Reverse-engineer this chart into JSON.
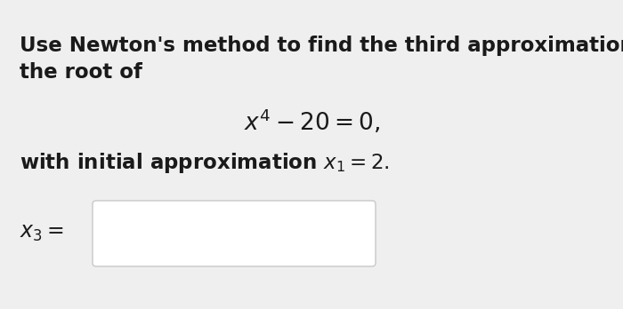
{
  "background_color": "#efefef",
  "card_color": "#f2f2f2",
  "text_color": "#1a1a1a",
  "line1": "Use Newton's method to find the third approximation to",
  "line2": "the root of",
  "equation": "$x^4 - 20 = 0,$",
  "line3": "with initial approximation $x_1 = 2.$",
  "answer_label": "$x_3 =$",
  "input_box_color": "#ffffff",
  "input_box_border": "#c8c8c8",
  "font_size_body": 16.5,
  "font_size_eq": 19,
  "font_size_answer": 17
}
